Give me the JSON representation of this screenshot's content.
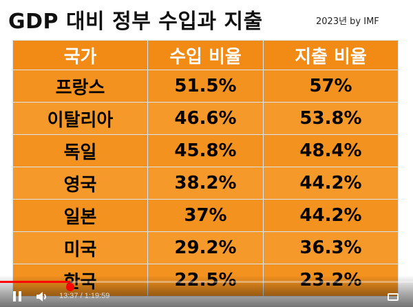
{
  "header": {
    "title": "GDP 대비 정부 수입과 지출",
    "subtitle": "2023년 by IMF"
  },
  "table": {
    "columns": [
      "국가",
      "수입 비율",
      "지출 비율"
    ],
    "rows": [
      [
        "프랑스",
        "51.5%",
        "57%"
      ],
      [
        "이탈리아",
        "46.6%",
        "53.8%"
      ],
      [
        "독일",
        "45.8%",
        "48.4%"
      ],
      [
        "영국",
        "38.2%",
        "44.2%"
      ],
      [
        "일본",
        "37%",
        "44.2%"
      ],
      [
        "미국",
        "29.2%",
        "36.3%"
      ],
      [
        "한국",
        "22.5%",
        "23.2%"
      ]
    ]
  },
  "player": {
    "time_label": "13:37 / 1:19:59",
    "progress": 0.17,
    "progress_color": "#ff0000",
    "icons": [
      "pause-icon",
      "volume-icon",
      "captions-icon"
    ]
  },
  "colors": {
    "table_bg": "#f4921f",
    "header_text": "#ffffff",
    "cell_text": "#000000",
    "grid_line": "#d8e6f3"
  }
}
